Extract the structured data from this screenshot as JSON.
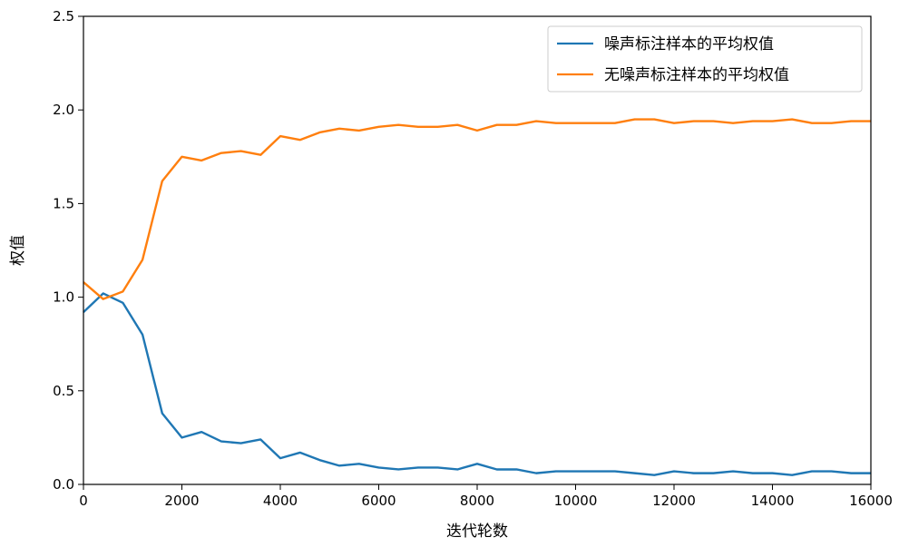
{
  "chart_data": {
    "type": "line",
    "title": "",
    "xlabel": "迭代轮数",
    "ylabel": "权值",
    "xlim": [
      0,
      16000
    ],
    "ylim": [
      0,
      2.5
    ],
    "xticks": [
      0,
      2000,
      4000,
      6000,
      8000,
      10000,
      12000,
      14000,
      16000
    ],
    "xtick_labels": [
      "0",
      "2000",
      "4000",
      "6000",
      "8000",
      "10000",
      "12000",
      "14000",
      "16000"
    ],
    "yticks": [
      0,
      0.5,
      1.0,
      1.5,
      2.0,
      2.5
    ],
    "ytick_labels": [
      "0.0",
      "0.5",
      "1.0",
      "1.5",
      "2.0",
      "2.5"
    ],
    "grid": false,
    "legend_position": "top-right",
    "x": [
      0,
      400,
      800,
      1200,
      1600,
      2000,
      2400,
      2800,
      3200,
      3600,
      4000,
      4400,
      4800,
      5200,
      5600,
      6000,
      6400,
      6800,
      7200,
      7600,
      8000,
      8400,
      8800,
      9200,
      9600,
      10000,
      10400,
      10800,
      11200,
      11600,
      12000,
      12400,
      12800,
      13200,
      13600,
      14000,
      14400,
      14800,
      15200,
      15600,
      16000
    ],
    "series": [
      {
        "name": "噪声标注样本的平均权值",
        "color": "#1f77b4",
        "values": [
          0.92,
          1.02,
          0.97,
          0.8,
          0.38,
          0.25,
          0.28,
          0.23,
          0.22,
          0.24,
          0.14,
          0.17,
          0.13,
          0.1,
          0.11,
          0.09,
          0.08,
          0.09,
          0.09,
          0.08,
          0.11,
          0.08,
          0.08,
          0.06,
          0.07,
          0.07,
          0.07,
          0.07,
          0.06,
          0.05,
          0.07,
          0.06,
          0.06,
          0.07,
          0.06,
          0.06,
          0.05,
          0.07,
          0.07,
          0.06,
          0.06
        ]
      },
      {
        "name": "无噪声标注样本的平均权值",
        "color": "#ff7f0e",
        "values": [
          1.08,
          0.99,
          1.03,
          1.2,
          1.62,
          1.75,
          1.73,
          1.77,
          1.78,
          1.76,
          1.86,
          1.84,
          1.88,
          1.9,
          1.89,
          1.91,
          1.92,
          1.91,
          1.91,
          1.92,
          1.89,
          1.92,
          1.92,
          1.94,
          1.93,
          1.93,
          1.93,
          1.93,
          1.95,
          1.95,
          1.93,
          1.94,
          1.94,
          1.93,
          1.94,
          1.94,
          1.95,
          1.93,
          1.93,
          1.94,
          1.94
        ]
      }
    ]
  }
}
